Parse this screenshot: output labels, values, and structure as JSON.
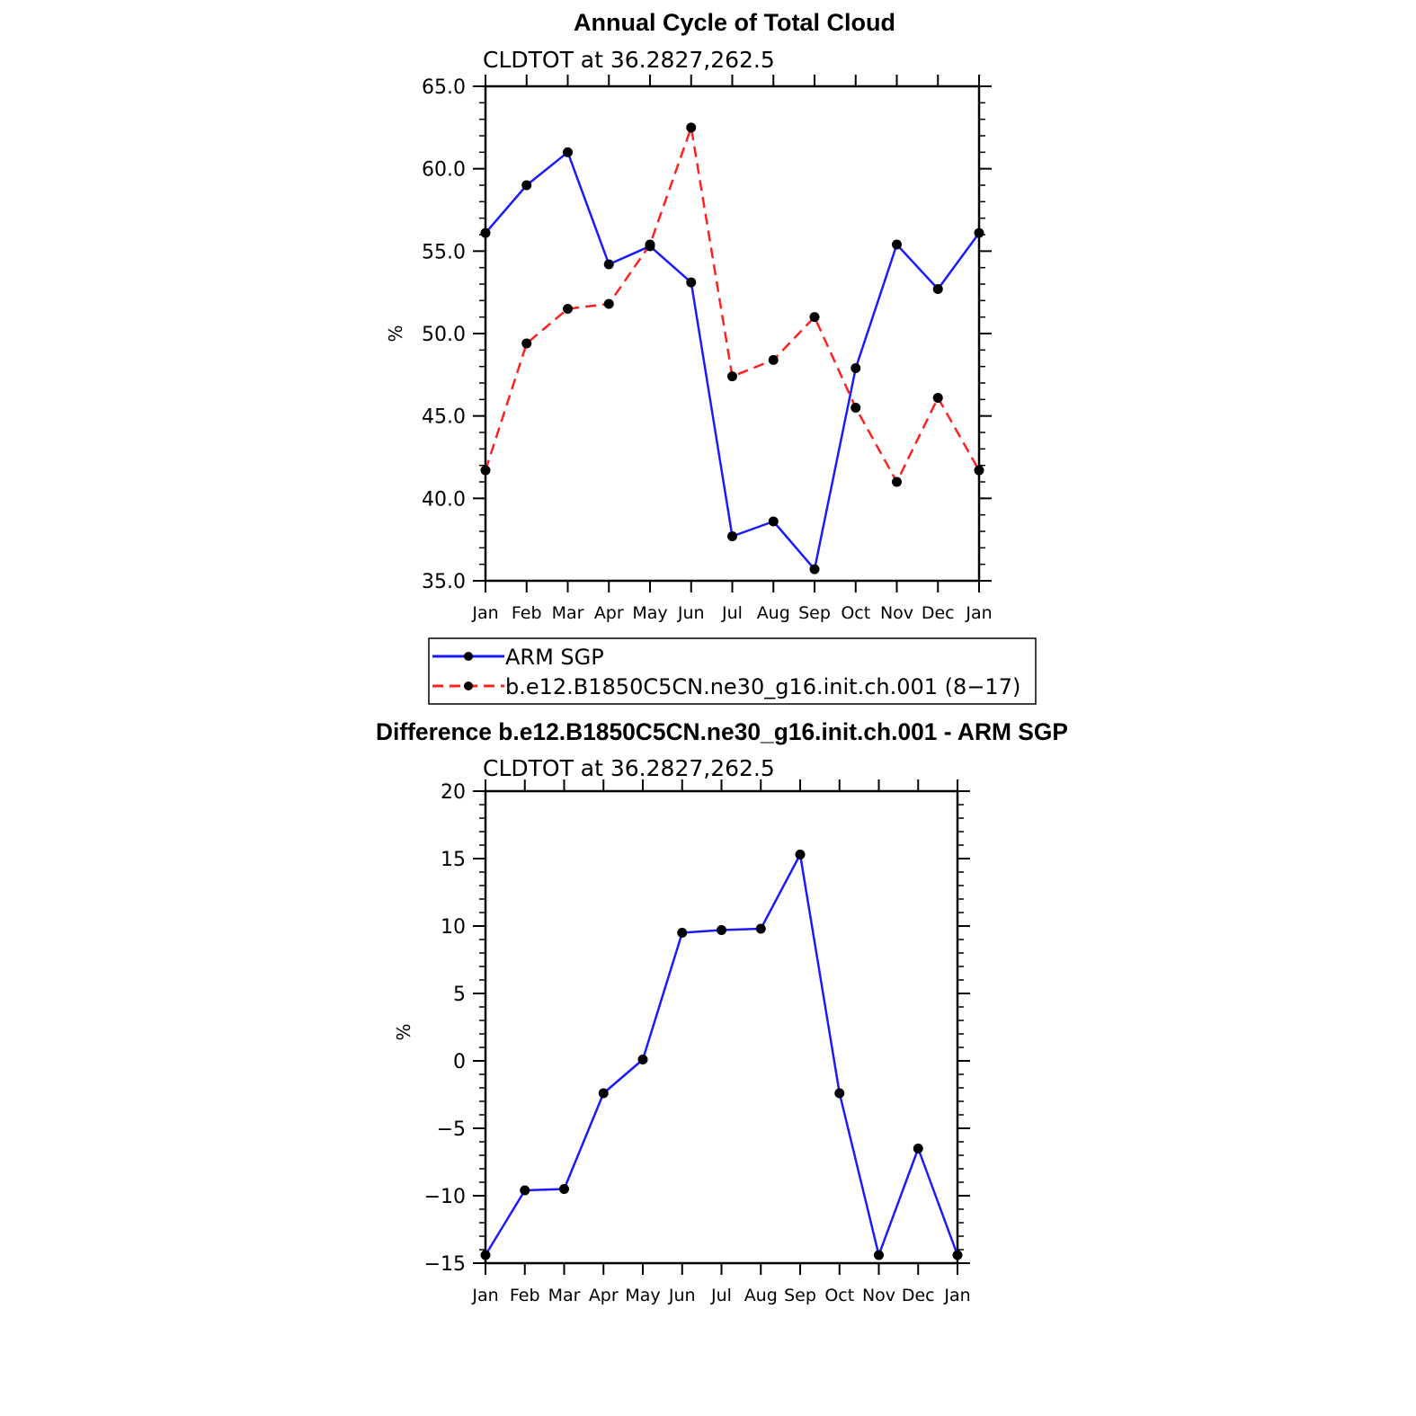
{
  "colors": {
    "series1": "#1a1aff",
    "series2": "#ff2020",
    "marker": "#000000",
    "axis": "#000000"
  },
  "chart_data": [
    {
      "type": "line",
      "title": "Annual Cycle of Total Cloud",
      "subtitle": "CLDTOT at 36.2827,262.5",
      "xlabel": "",
      "ylabel": "%",
      "categories": [
        "Jan",
        "Feb",
        "Mar",
        "Apr",
        "May",
        "Jun",
        "Jul",
        "Aug",
        "Sep",
        "Oct",
        "Nov",
        "Dec",
        "Jan"
      ],
      "ylim": [
        35,
        65
      ],
      "yticks": [
        "35.0",
        "40.0",
        "45.0",
        "50.0",
        "55.0",
        "60.0",
        "65.0"
      ],
      "ytick_values": [
        35,
        40,
        45,
        50,
        55,
        60,
        65
      ],
      "legend_placement": "bottom",
      "series": [
        {
          "name": "ARM SGP",
          "style": "solid",
          "values": [
            56.1,
            59.0,
            61.0,
            54.2,
            55.3,
            53.1,
            37.7,
            38.6,
            35.7,
            47.9,
            55.4,
            52.7,
            56.1
          ]
        },
        {
          "name": "b.e12.B1850C5CN.ne30_g16.init.ch.001 (8−17)",
          "style": "dashed",
          "values": [
            41.7,
            49.4,
            51.5,
            51.8,
            55.4,
            62.5,
            47.4,
            48.4,
            51.0,
            45.5,
            41.0,
            46.1,
            41.7
          ]
        }
      ]
    },
    {
      "type": "line",
      "title": "Difference b.e12.B1850C5CN.ne30_g16.init.ch.001 - ARM SGP",
      "subtitle": "CLDTOT at 36.2827,262.5",
      "xlabel": "",
      "ylabel": "%",
      "categories": [
        "Jan",
        "Feb",
        "Mar",
        "Apr",
        "May",
        "Jun",
        "Jul",
        "Aug",
        "Sep",
        "Oct",
        "Nov",
        "Dec",
        "Jan"
      ],
      "ylim": [
        -15,
        20
      ],
      "yticks": [
        "−15",
        "−10",
        "−5",
        "0",
        "5",
        "10",
        "15",
        "20"
      ],
      "ytick_values": [
        -15,
        -10,
        -5,
        0,
        5,
        10,
        15,
        20
      ],
      "series": [
        {
          "style": "solid",
          "values": [
            -14.4,
            -9.6,
            -9.5,
            -2.4,
            0.1,
            9.5,
            9.7,
            9.8,
            15.3,
            -2.4,
            -14.4,
            -6.5,
            -14.4
          ]
        }
      ]
    }
  ]
}
